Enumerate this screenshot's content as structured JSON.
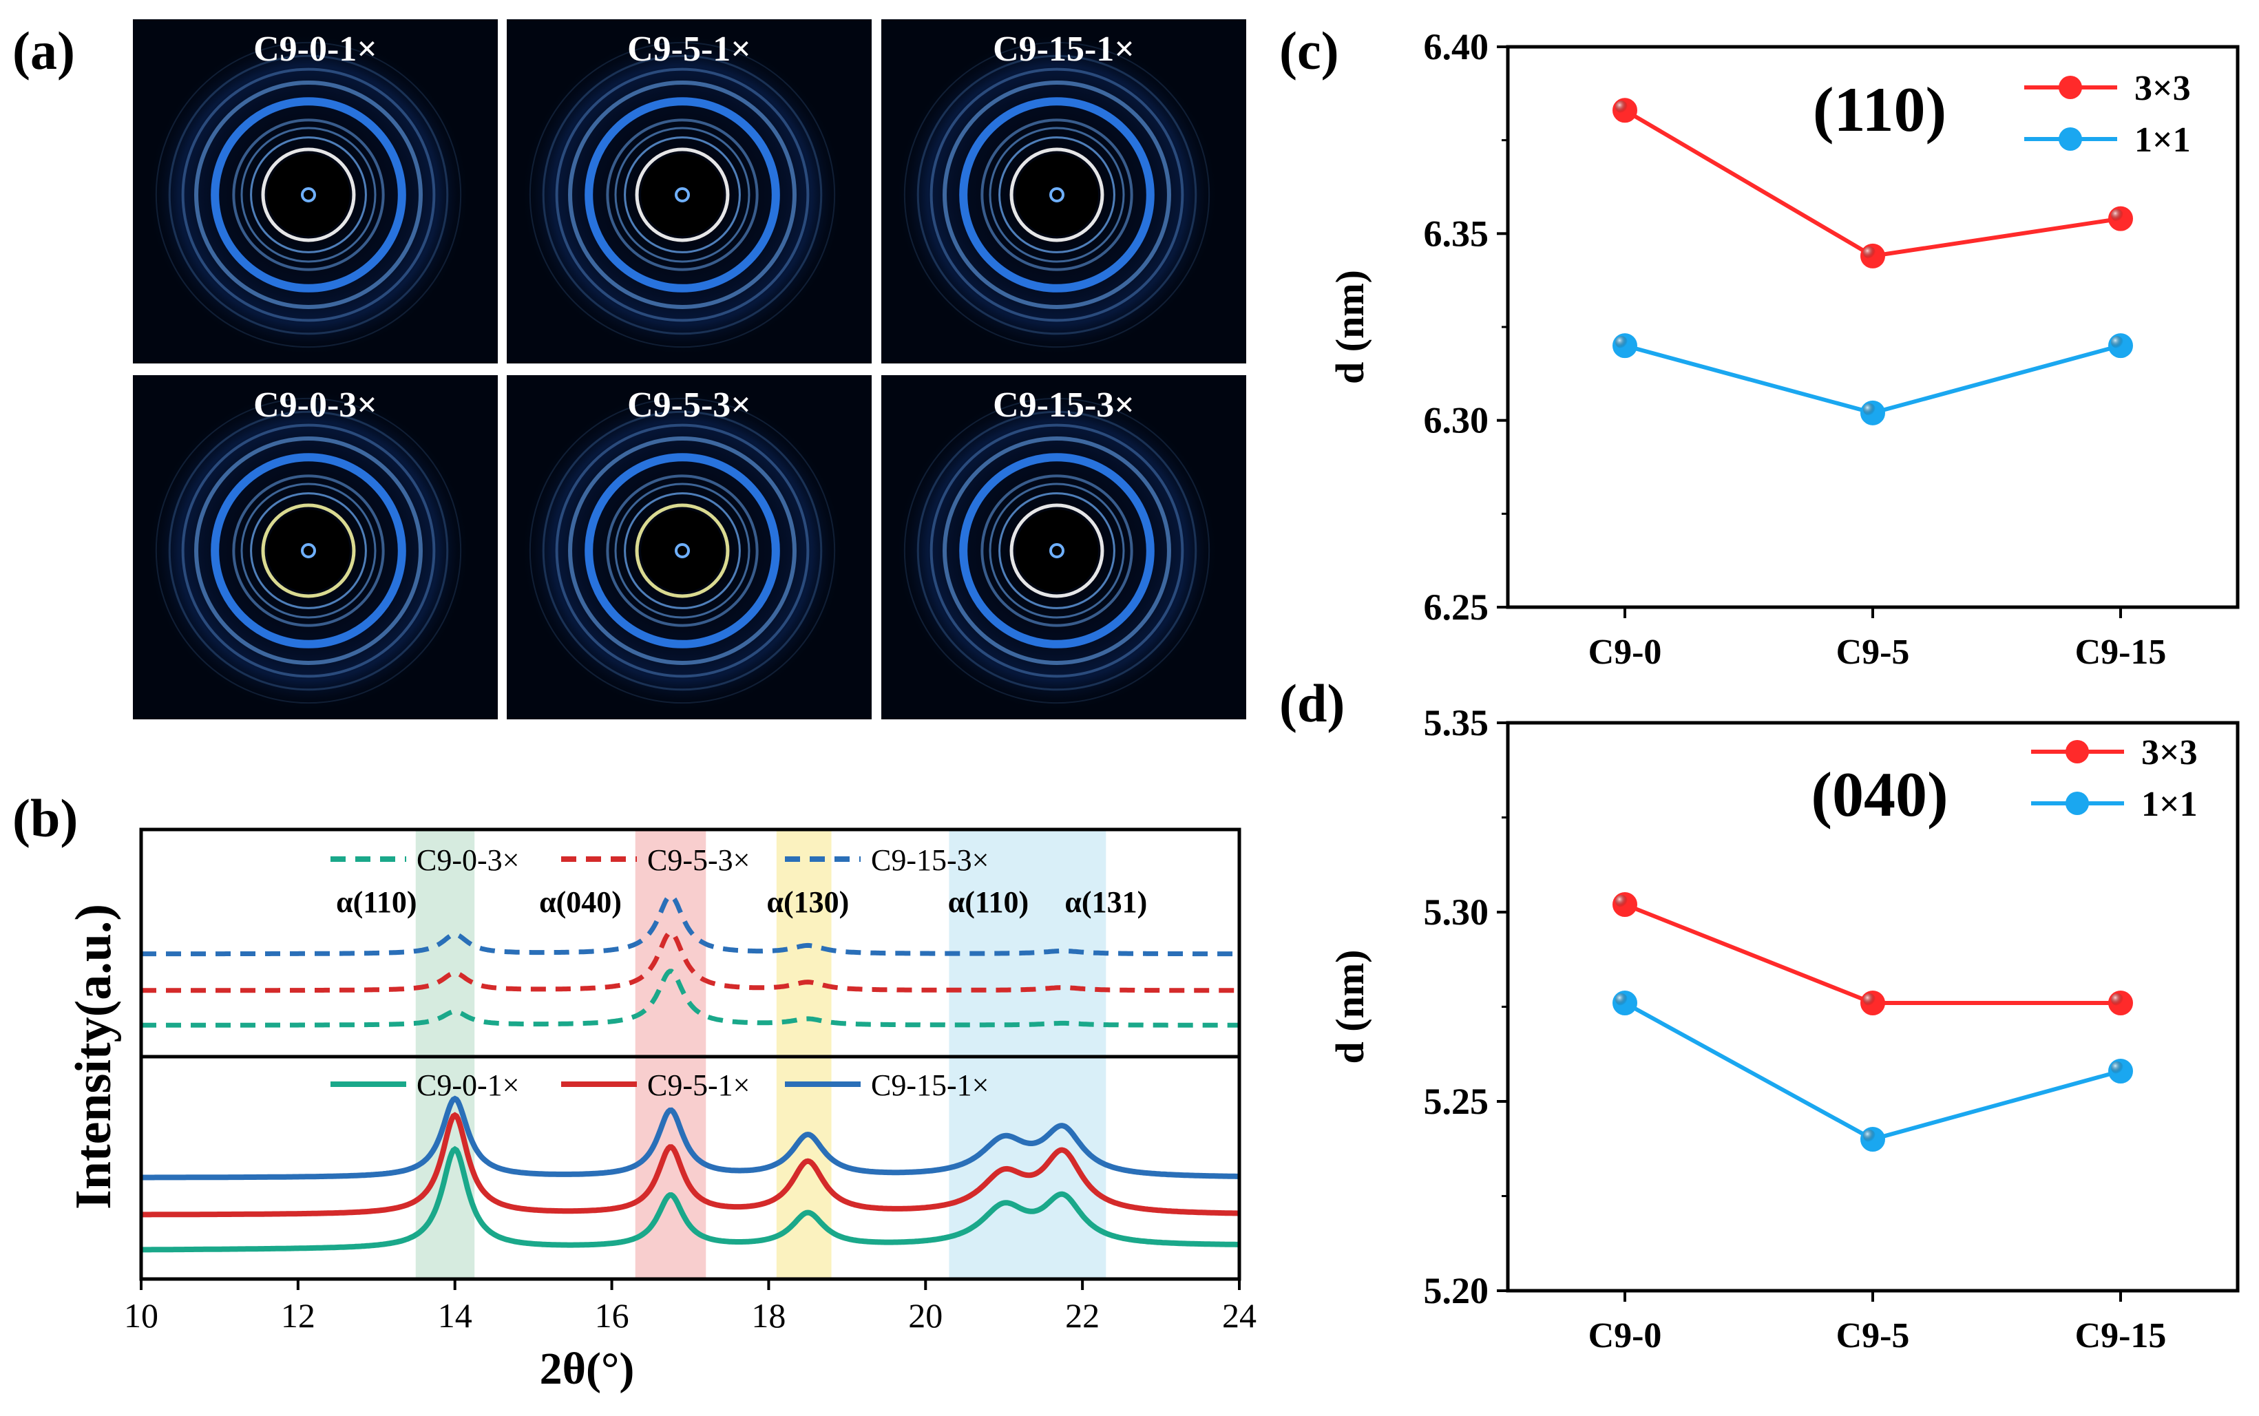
{
  "panel_labels": {
    "a": "(a)",
    "b": "(b)",
    "c": "(c)",
    "d": "(d)"
  },
  "panel_a": {
    "images": [
      {
        "label": "C9-0-1×",
        "ring_color": "#ffffff"
      },
      {
        "label": "C9-5-1×",
        "ring_color": "#ffffff"
      },
      {
        "label": "C9-15-1×",
        "ring_color": "#ffffff"
      },
      {
        "label": "C9-0-3×",
        "ring_color": "#f2f2a0"
      },
      {
        "label": "C9-5-3×",
        "ring_color": "#f2f2a0"
      },
      {
        "label": "C9-15-3×",
        "ring_color": "#ffffff"
      }
    ],
    "colors": {
      "background": "#000510",
      "ring": "#2f86ff",
      "ring_bright": "#6fb0ff"
    }
  },
  "chart_data": [
    {
      "id": "b",
      "type": "line",
      "xlabel": "2θ(°)",
      "ylabel": "Intensity(a.u.)",
      "xlim": [
        10,
        24
      ],
      "xticks": [
        10,
        12,
        14,
        16,
        18,
        20,
        22,
        24
      ],
      "xtick_labels": [
        "10",
        "12",
        "14",
        "16",
        "18",
        "20",
        "22",
        "24"
      ],
      "bands": [
        {
          "x0": 13.5,
          "x1": 14.25,
          "color": "#cfe8d9"
        },
        {
          "x0": 16.3,
          "x1": 17.2,
          "color": "#f7c6c6"
        },
        {
          "x0": 18.1,
          "x1": 18.8,
          "color": "#faf0b4"
        },
        {
          "x0": 20.3,
          "x1": 22.3,
          "color": "#d2ecf7"
        }
      ],
      "peak_labels": [
        {
          "text": "α(110)",
          "x": 13.0
        },
        {
          "text": "α(040)",
          "x": 15.6
        },
        {
          "text": "α(130)",
          "x": 18.5
        },
        {
          "text": "α(110)",
          "x": 20.8
        },
        {
          "text": "α(131)",
          "x": 22.3
        }
      ],
      "top_legend": [
        "C9-0-3×",
        "C9-5-3×",
        "C9-15-3×"
      ],
      "bottom_legend": [
        "C9-0-1×",
        "C9-5-1×",
        "C9-15-1×"
      ],
      "peaks_model": [
        {
          "center": 14.0,
          "width": 0.2
        },
        {
          "center": 16.75,
          "width": 0.2
        },
        {
          "center": 18.5,
          "width": 0.25
        },
        {
          "center": 21.0,
          "width": 0.35
        },
        {
          "center": 21.75,
          "width": 0.3
        }
      ],
      "series": [
        {
          "name": "C9-0-3×",
          "group": "top",
          "style": "dashed",
          "color": "#1aa88a",
          "baseline": 0.12,
          "slope": 0.0,
          "amps": [
            0.07,
            0.28,
            0.03,
            0.0,
            0.01
          ]
        },
        {
          "name": "C9-5-3×",
          "group": "top",
          "style": "dashed",
          "color": "#d42a2a",
          "baseline": 0.3,
          "slope": 0.0,
          "amps": [
            0.09,
            0.3,
            0.04,
            0.0,
            0.015
          ]
        },
        {
          "name": "C9-15-3×",
          "group": "top",
          "style": "dashed",
          "color": "#2a6fb8",
          "baseline": 0.49,
          "slope": 0.0,
          "amps": [
            0.1,
            0.3,
            0.04,
            0.0,
            0.015
          ]
        },
        {
          "name": "C9-0-1×",
          "group": "bottom",
          "style": "solid",
          "color": "#1aa88a",
          "baseline": 0.1,
          "slope": 0.02,
          "amps": [
            0.48,
            0.25,
            0.16,
            0.18,
            0.22
          ]
        },
        {
          "name": "C9-5-1×",
          "group": "bottom",
          "style": "solid",
          "color": "#d42a2a",
          "baseline": 0.27,
          "slope": 0.0,
          "amps": [
            0.48,
            0.32,
            0.25,
            0.18,
            0.28
          ]
        },
        {
          "name": "C9-15-1×",
          "group": "bottom",
          "style": "solid",
          "color": "#2a6fb8",
          "baseline": 0.45,
          "slope": 0.0,
          "amps": [
            0.38,
            0.32,
            0.2,
            0.17,
            0.22
          ]
        }
      ]
    },
    {
      "id": "c",
      "type": "line",
      "title": "(110)",
      "ylabel": "d (nm)",
      "categories": [
        "C9-0",
        "C9-5",
        "C9-15"
      ],
      "ylim": [
        6.25,
        6.4
      ],
      "yticks": [
        6.25,
        6.3,
        6.35,
        6.4
      ],
      "ytick_labels": [
        "6.25",
        "6.30",
        "6.35",
        "6.40"
      ],
      "legend_position": "top-right",
      "series": [
        {
          "name": "3×3",
          "color": "#ff2a2a",
          "values": [
            6.383,
            6.344,
            6.354
          ]
        },
        {
          "name": "1×1",
          "color": "#1aa7f0",
          "values": [
            6.32,
            6.302,
            6.32
          ]
        }
      ]
    },
    {
      "id": "d",
      "type": "line",
      "title": "(040)",
      "ylabel": "d (nm)",
      "categories": [
        "C9-0",
        "C9-5",
        "C9-15"
      ],
      "ylim": [
        5.2,
        5.35
      ],
      "yticks": [
        5.2,
        5.25,
        5.3,
        5.35
      ],
      "ytick_labels": [
        "5.20",
        "5.25",
        "5.30",
        "5.35"
      ],
      "legend_position": "top-right",
      "series": [
        {
          "name": "3×3",
          "color": "#ff2a2a",
          "values": [
            5.302,
            5.276,
            5.276
          ]
        },
        {
          "name": "1×1",
          "color": "#1aa7f0",
          "values": [
            5.276,
            5.24,
            5.258
          ]
        }
      ]
    }
  ]
}
